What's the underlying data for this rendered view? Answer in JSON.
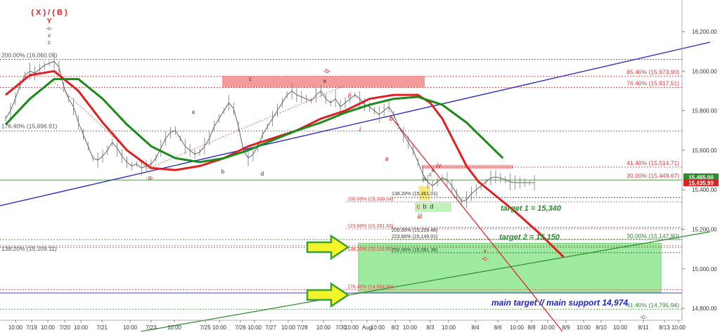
{
  "chart_data": {
    "type": "line",
    "symbol_note": "Elliott wave analysis (candlestick price chart with moving averages)",
    "y_axis": {
      "ylim": [
        14740,
        16360
      ],
      "ticks": [
        "16,200.00",
        "16,000.00",
        "15,800.00",
        "15,600.00",
        "15,400.00",
        "15,200.00",
        "15,000.00",
        "14,800.00"
      ],
      "tick_values": [
        16200,
        16000,
        15800,
        15600,
        15400,
        15200,
        15000,
        14800
      ],
      "price_tags": [
        {
          "text": "15,465.00",
          "value": 15465,
          "color": "#2e8b2e"
        },
        {
          "text": "15,435.99",
          "value": 15435.99,
          "color": "#e02020"
        }
      ]
    },
    "x_axis": {
      "ticks": [
        "10:00",
        "7/19",
        "10:00",
        "7/20",
        "10:00",
        "7/21",
        "10:00",
        "7/23",
        "10:00",
        "7/25",
        "10:00",
        "7/26",
        "10:00",
        "7/27",
        "10:00",
        "7/28",
        "10:00",
        "7/30",
        "10:00",
        "Aug",
        "10:00",
        "8/2",
        "10:00",
        "8/3",
        "10:00",
        "8/4",
        "8/6",
        "10:00",
        "8/8",
        "10:00",
        "8/9",
        "10:00",
        "8/10",
        "10:00",
        "8/11",
        "8/13",
        "10:00"
      ]
    },
    "levels": [
      {
        "label": "200.00% (16,060.05)",
        "value": 16060.05,
        "color": "#555555",
        "style": "dotted"
      },
      {
        "label": "176.40% (15,696.91)",
        "value": 15696.91,
        "color": "#555555",
        "style": "dotted"
      },
      {
        "label": "138.20% (15,109.11)",
        "value": 15109.11,
        "color": "#555555",
        "style": "dotted"
      },
      {
        "label": "85.40% (15,973.90)",
        "value": 15973.9,
        "color": "#e04040",
        "style": "dotted"
      },
      {
        "label": "76.40% (15,917.51)",
        "value": 15917.51,
        "color": "#e04040",
        "style": "dotted"
      },
      {
        "label": "41.40% (15,514.71)",
        "value": 15514.71,
        "color": "#e04040",
        "style": "dotted"
      },
      {
        "label": "30.00% (15,449.67)",
        "value": 15449.67,
        "color": "#e04040",
        "style": "dotted"
      },
      {
        "label": "100.00% (15,339.04)",
        "value": 15339.04,
        "color": "#e04040",
        "style": "dotted"
      },
      {
        "label": "123.60% (15,201.83)",
        "value": 15201.83,
        "color": "#e04040",
        "style": "dotted"
      },
      {
        "label": "138.20% (15,116.95)",
        "value": 15116.95,
        "color": "#e04040",
        "style": "dotted"
      },
      {
        "label": "176.40% (14,894.86)",
        "value": 14894.86,
        "color": "#e04040",
        "style": "dotted"
      },
      {
        "label": "138.20% (15,361.01)",
        "value": 15361.01,
        "color": "#333333",
        "style": "dotted"
      },
      {
        "label": "200.00% (15,209.48)",
        "value": 15209.48,
        "color": "#333333",
        "style": "dotted"
      },
      {
        "label": "223.60% (15,149.01)",
        "value": 15149.01,
        "color": "#333333",
        "style": "dotted"
      },
      {
        "label": "250.00% (15,081.38)",
        "value": 15081.38,
        "color": "#333333",
        "style": "dotted"
      },
      {
        "label": "30.00% (15,147.90)",
        "value": 15147.9,
        "color": "#2e8b2e",
        "style": "dotted"
      },
      {
        "label": "41.40% (14,795.94)",
        "value": 14795.94,
        "color": "#2e8b2e",
        "style": "dotted"
      }
    ],
    "annotations": {
      "top_label": "( X ) / ( B )",
      "y_label": "Y",
      "c_neg": "-c-",
      "v_small": "v",
      "c_small": "c",
      "b_neg": "-b-",
      "c_red": "c",
      "e_black": "e",
      "a_black": "a",
      "b_black": "b",
      "d_black": "d",
      "a_neg": "-a-",
      "ii_red": "ii",
      "i_red": "i",
      "b_red": "b",
      "a_red": "a",
      "iv_red": "iv",
      "a_black2": "a",
      "c_black2": "c",
      "e_black2": "e",
      "c_red2": "c",
      "b_black2": "b",
      "d_black2": "d",
      "iii_red": "iii",
      "v_red": "v",
      "c_neg_red": "-c-",
      "c_neg_bottom": "-c-"
    },
    "targets": {
      "target1": "target 1 = 15,340",
      "target2": "target 2 = 15,150",
      "main": "main target // main support 14,974"
    },
    "series": [
      {
        "name": "price (close)",
        "color": "#555555",
        "x": [
          0,
          2,
          4,
          6,
          8,
          10,
          12,
          14,
          16,
          18,
          20,
          22,
          24,
          26,
          28,
          30,
          32,
          34,
          36,
          38,
          40,
          42,
          44,
          46,
          48,
          50,
          52,
          54,
          56,
          58,
          60,
          62,
          64,
          66,
          68,
          70,
          72,
          74,
          76,
          78,
          80,
          82,
          84,
          86,
          88,
          90,
          92,
          94,
          96,
          98,
          100,
          102,
          104,
          106,
          108,
          110,
          112,
          114,
          116,
          118,
          120,
          122,
          124,
          126,
          128,
          130,
          132,
          134,
          136,
          138,
          140,
          142,
          144,
          146,
          148,
          150,
          152,
          154,
          156,
          158,
          160,
          162,
          164,
          166,
          168,
          170,
          172,
          174,
          176,
          178,
          180,
          182,
          184,
          186,
          188,
          190,
          192,
          194,
          196,
          198,
          200,
          202,
          204,
          206,
          208,
          210,
          212,
          214,
          216,
          218
        ],
        "y": [
          15760,
          15800,
          15860,
          15930,
          15980,
          16000,
          15990,
          16010,
          16030,
          16040,
          16050,
          16020,
          15920,
          15860,
          15820,
          15740,
          15680,
          15620,
          15560,
          15550,
          15570,
          15600,
          15640,
          15610,
          15570,
          15540,
          15520,
          15530,
          15510,
          15520,
          15530,
          15560,
          15610,
          15660,
          15690,
          15700,
          15660,
          15620,
          15600,
          15580,
          15590,
          15620,
          15660,
          15720,
          15760,
          15800,
          15840,
          15810,
          15720,
          15600,
          15560,
          15580,
          15620,
          15680,
          15720,
          15760,
          15800,
          15840,
          15880,
          15900,
          15880,
          15870,
          15860,
          15850,
          15880,
          15900,
          15860,
          15840,
          15860,
          15820,
          15840,
          15860,
          15880,
          15860,
          15830,
          15820,
          15800,
          15780,
          15800,
          15820,
          15780,
          15720,
          15680,
          15640,
          15600,
          15540,
          15480,
          15440,
          15420,
          15440,
          15460,
          15450,
          15420,
          15380,
          15340,
          15350,
          15380,
          15400,
          15420,
          15440,
          15460,
          15465,
          15460,
          15450,
          15440,
          15436,
          15436,
          15436,
          15436,
          15436
        ]
      },
      {
        "name": "moving average (red)",
        "color": "#e02020",
        "x": [
          0,
          10,
          20,
          30,
          40,
          50,
          60,
          70,
          80,
          90,
          100,
          110,
          120,
          130,
          140,
          150,
          160,
          170,
          175,
          180,
          185,
          190,
          195,
          200,
          210,
          220,
          230
        ],
        "y": [
          15880,
          15980,
          16000,
          15900,
          15740,
          15600,
          15510,
          15500,
          15520,
          15560,
          15620,
          15660,
          15700,
          15760,
          15800,
          15860,
          15880,
          15880,
          15840,
          15760,
          15640,
          15520,
          15440,
          15390,
          15290,
          15180,
          15060
        ]
      },
      {
        "name": "moving average (green)",
        "color": "#1a8a1a",
        "x": [
          0,
          10,
          20,
          30,
          40,
          50,
          60,
          70,
          80,
          90,
          100,
          110,
          120,
          130,
          140,
          150,
          160,
          170,
          180,
          190,
          195,
          200,
          205
        ],
        "y": [
          15730,
          15860,
          15960,
          15960,
          15860,
          15730,
          15620,
          15560,
          15540,
          15560,
          15600,
          15650,
          15700,
          15740,
          15790,
          15830,
          15860,
          15870,
          15830,
          15740,
          15680,
          15620,
          15560
        ]
      }
    ]
  }
}
